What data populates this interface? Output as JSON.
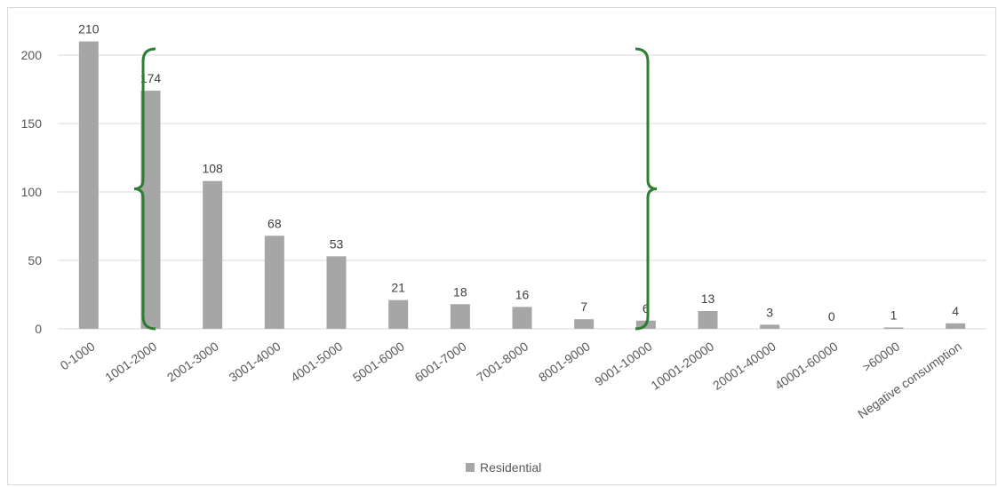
{
  "chart_data": {
    "type": "bar",
    "title": "",
    "xlabel": "",
    "ylabel": "",
    "categories": [
      "0-1000",
      "1001-2000",
      "2001-3000",
      "3001-4000",
      "4001-5000",
      "5001-6000",
      "6001-7000",
      "7001-8000",
      "8001-9000",
      "9001-10000",
      "10001-20000",
      "20001-40000",
      "40001-60000",
      ">60000",
      "Negative consumption"
    ],
    "series": [
      {
        "name": "Residential",
        "values": [
          210,
          174,
          108,
          68,
          53,
          21,
          18,
          16,
          7,
          6,
          13,
          3,
          0,
          1,
          4
        ]
      }
    ],
    "ylim": [
      0,
      200
    ],
    "yticks": [
      0,
      50,
      100,
      150,
      200
    ],
    "grid": true,
    "legend_position": "bottom",
    "colors": {
      "bar": "#a6a6a6",
      "grid": "#d9d9d9",
      "text": "#595959",
      "brace": "#2e7d32"
    },
    "annotations": [
      {
        "type": "curly-brace",
        "side": "left",
        "at_category": "1001-2000"
      },
      {
        "type": "curly-brace",
        "side": "right",
        "at_category": "9001-10000"
      }
    ]
  }
}
